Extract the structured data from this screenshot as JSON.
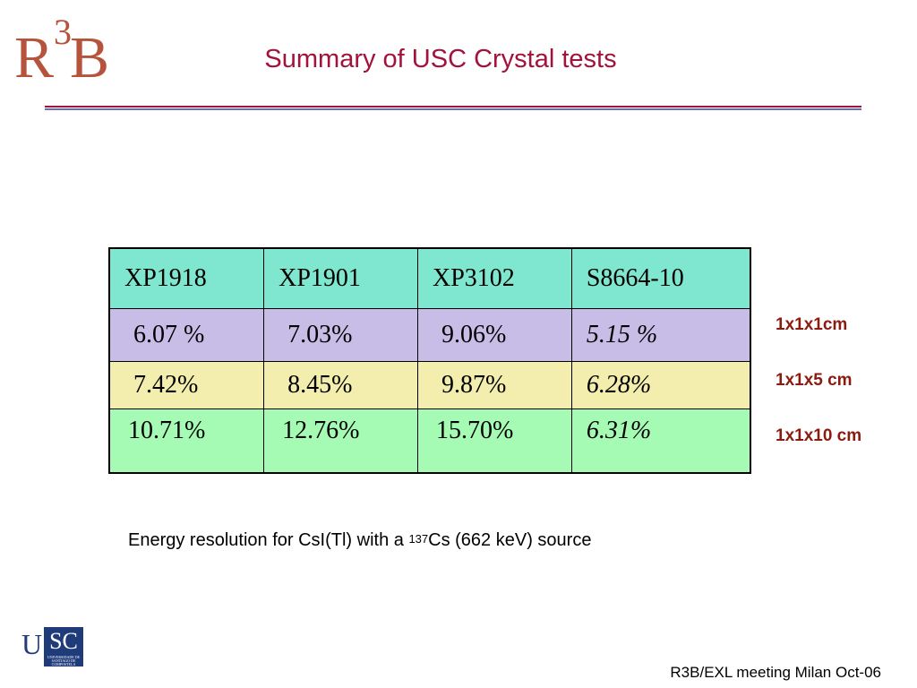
{
  "logo": {
    "r": "R",
    "three": "3",
    "b": "B"
  },
  "title": "Summary of USC Crystal tests",
  "table": {
    "headers": [
      "XP1918",
      "XP1901",
      "XP3102",
      "S8664-10"
    ],
    "rows": [
      [
        "6.07 %",
        "7.03%",
        "9.06%",
        "5.15 %"
      ],
      [
        "7.42%",
        "8.45%",
        "9.87%",
        "6.28%"
      ],
      [
        "10.71%",
        "12.76%",
        "15.70%",
        "6.31%"
      ]
    ]
  },
  "sizes": [
    "1x1x1cm",
    "1x1x5 cm",
    "1x1x10 cm"
  ],
  "caption": {
    "before": "Energy resolution for CsI(Tl)  with a ",
    "isotope_mass": "137",
    "after": "Cs (662 keV) source"
  },
  "usc_logo": {
    "u": "U",
    "sc": "SC",
    "tagline": "UNIVERSIDADE DE SANTIAGO DE COMPOSTELA"
  },
  "footer": "R3B/EXL meeting Milan Oct-06",
  "colors": {
    "title": "#a3123a",
    "header_row": "#7fe6cf",
    "row1": "#c8bde6",
    "row2": "#f3eeae",
    "row3": "#a6fbb4",
    "size_label": "#8b1a10"
  }
}
